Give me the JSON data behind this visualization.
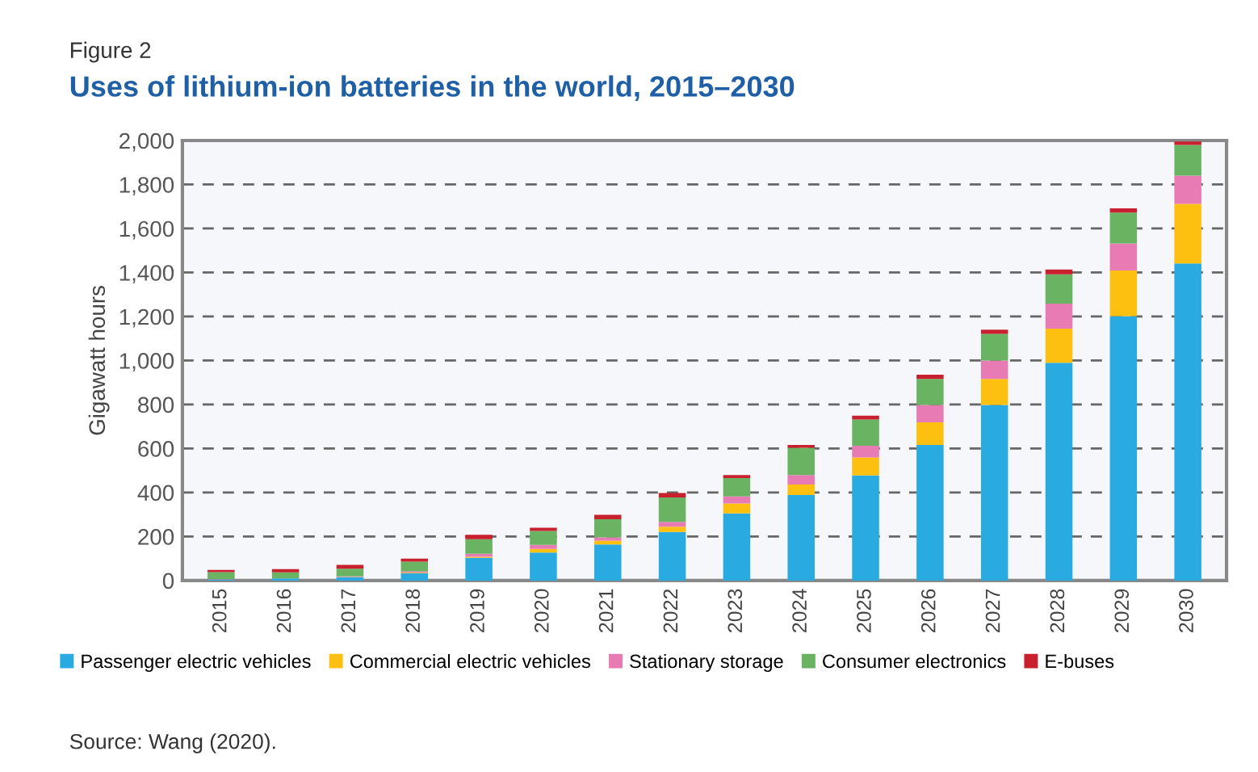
{
  "chart_data": {
    "type": "bar",
    "stacked": true,
    "title": "Uses of lithium-ion batteries in the world, 2015–2030",
    "subtitle": "Figure 2",
    "ylabel": "Gigawatt hours",
    "annotations": [
      "Source: Wang (2020)."
    ],
    "categories": [
      "2015",
      "2016",
      "2017",
      "2018",
      "2019",
      "2020",
      "2021",
      "2022",
      "2023",
      "2024",
      "2025",
      "2026",
      "2027",
      "2028",
      "2029",
      "2030"
    ],
    "series": [
      {
        "name": "Passenger electric vehicles",
        "color": "#29abe2",
        "values": [
          4,
          10,
          15,
          34,
          103,
          127,
          164,
          221,
          305,
          389,
          478,
          616,
          798,
          990,
          1202,
          1441
        ]
      },
      {
        "name": "Commercial electric vehicles",
        "color": "#fdc010",
        "values": [
          0,
          0,
          1,
          2,
          5,
          17,
          17,
          24,
          45,
          47,
          81,
          103,
          118,
          155,
          207,
          271
        ]
      },
      {
        "name": "Stationary storage",
        "color": "#e87bb4",
        "values": [
          2,
          null,
          3,
          6,
          14,
          18,
          15,
          22,
          32,
          44,
          54,
          79,
          84,
          114,
          123,
          128
        ]
      },
      {
        "name": "Consumer electronics",
        "color": "#6ab362",
        "values": [
          32,
          27,
          35,
          44,
          66,
          63,
          83,
          111,
          84,
          123,
          119,
          118,
          121,
          133,
          140,
          140
        ]
      },
      {
        "name": "E-buses",
        "color": "#c8202f",
        "values": [
          10,
          15,
          17,
          14,
          20,
          15,
          20,
          20,
          14,
          13,
          17,
          20,
          19,
          22,
          20,
          15
        ]
      }
    ],
    "ylim": [
      0,
      2000
    ],
    "yticks": [
      {
        "value": 0,
        "label": "0"
      },
      {
        "value": 200,
        "label": "200"
      },
      {
        "value": 400,
        "label": "400"
      },
      {
        "value": 600,
        "label": "600"
      },
      {
        "value": 800,
        "label": "800"
      },
      {
        "value": 1000,
        "label": "1,000"
      },
      {
        "value": 1200,
        "label": "1,200"
      },
      {
        "value": 1400,
        "label": "1,400"
      },
      {
        "value": 1600,
        "label": "1,600"
      },
      {
        "value": 1800,
        "label": "1,800"
      },
      {
        "value": 2000,
        "label": "2,000"
      }
    ],
    "grid": "y",
    "legend": "bottom"
  }
}
